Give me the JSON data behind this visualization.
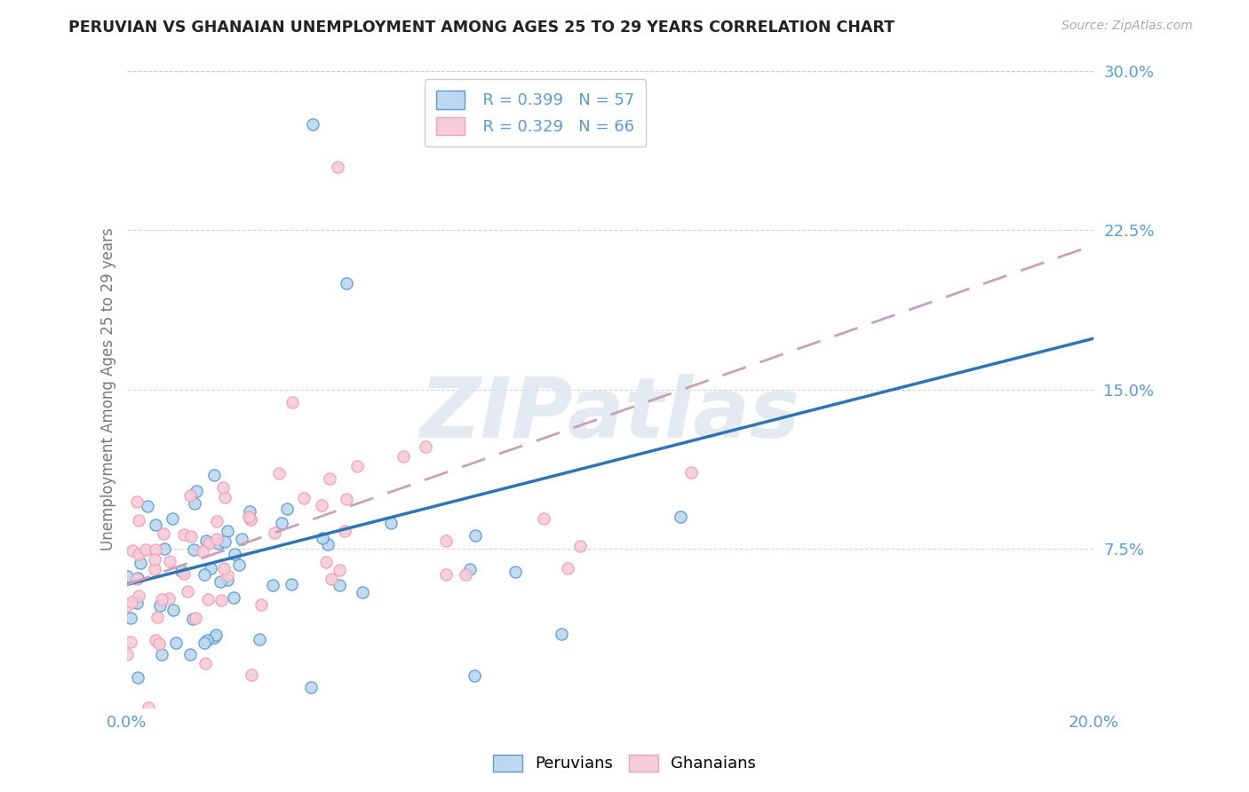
{
  "title": "PERUVIAN VS GHANAIAN UNEMPLOYMENT AMONG AGES 25 TO 29 YEARS CORRELATION CHART",
  "source": "Source: ZipAtlas.com",
  "ylabel": "Unemployment Among Ages 25 to 29 years",
  "xlim": [
    0.0,
    0.2
  ],
  "ylim": [
    0.0,
    0.3
  ],
  "yticks": [
    0.075,
    0.15,
    0.225,
    0.3
  ],
  "ytick_labels": [
    "7.5%",
    "15.0%",
    "22.5%",
    "30.0%"
  ],
  "xticks": [
    0.0,
    0.2
  ],
  "xtick_labels": [
    "0.0%",
    "20.0%"
  ],
  "legend_r1": "R = 0.399",
  "legend_n1": "N = 57",
  "legend_r2": "R = 0.329",
  "legend_n2": "N = 66",
  "legend_label1": "Peruvians",
  "legend_label2": "Ghanaians",
  "blue_color": "#5B9BD5",
  "pink_color": "#F4A0B5",
  "blue_light": "#BDD7EE",
  "pink_light": "#F4CCDA",
  "tick_color": "#5B9BD5",
  "grid_color": "#CCCCCC",
  "trend_blue": "#2E75B6",
  "trend_pink": "#C9A0B4",
  "peru_seed": 7,
  "ghana_seed": 99,
  "N_peru": 57,
  "N_ghana": 66,
  "watermark_color": "#E0E8F0",
  "watermark_alpha": 0.9
}
